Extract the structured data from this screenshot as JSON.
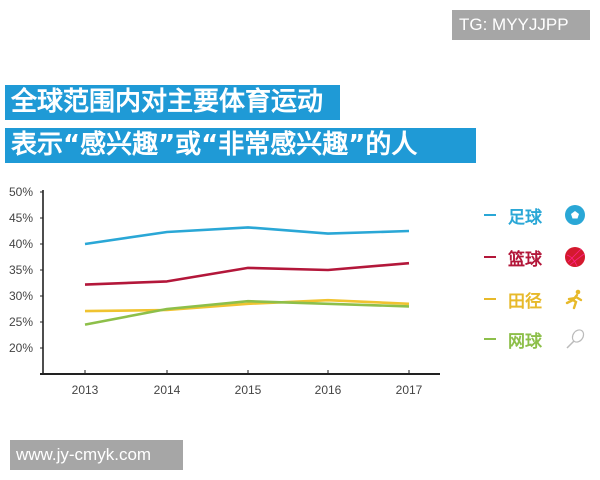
{
  "watermarks": {
    "top": "TG: MYYJJPP",
    "bottom": "www.jy-cmyk.com"
  },
  "title": {
    "line1": "全球范围内对主要体育运动",
    "line2": "表示“感兴趣”或“非常感兴趣”的人"
  },
  "colors": {
    "title_bg": "#1f9ad6",
    "football": "#2aa7d6",
    "basketball": "#b3173a",
    "athletics": "#f0c330",
    "tennis": "#8dbf4a"
  },
  "legend": [
    {
      "label": "足球",
      "icon": "soccer-ball-icon",
      "color": "#2aa7d6"
    },
    {
      "label": "篮球",
      "icon": "basketball-icon",
      "color": "#b3173a"
    },
    {
      "label": "田径",
      "icon": "runner-icon",
      "color": "#e7b92a"
    },
    {
      "label": "网球",
      "icon": "tennis-racket-icon",
      "color": "#8dbf4a"
    }
  ],
  "chart_data": {
    "type": "line",
    "title": "全球范围内对主要体育运动表示“感兴趣”或“非常感兴趣”的人",
    "xlabel": "",
    "ylabel": "",
    "categories": [
      "2013",
      "2014",
      "2015",
      "2016",
      "2017"
    ],
    "y_ticks": [
      "50%",
      "45%",
      "40%",
      "35%",
      "30%",
      "25%",
      "20%"
    ],
    "ylim": [
      15,
      50
    ],
    "grid": false,
    "legend_position": "right",
    "series": [
      {
        "name": "足球",
        "color": "#2aa7d6",
        "values": [
          40.0,
          42.3,
          43.2,
          42.0,
          42.5
        ]
      },
      {
        "name": "篮球",
        "color": "#b3173a",
        "values": [
          32.2,
          32.8,
          35.4,
          35.0,
          36.3
        ]
      },
      {
        "name": "田径",
        "color": "#f0c330",
        "values": [
          27.1,
          27.3,
          28.5,
          29.2,
          28.5
        ]
      },
      {
        "name": "网球",
        "color": "#8dbf4a",
        "values": [
          24.5,
          27.5,
          29.0,
          28.5,
          28.0
        ]
      }
    ]
  }
}
